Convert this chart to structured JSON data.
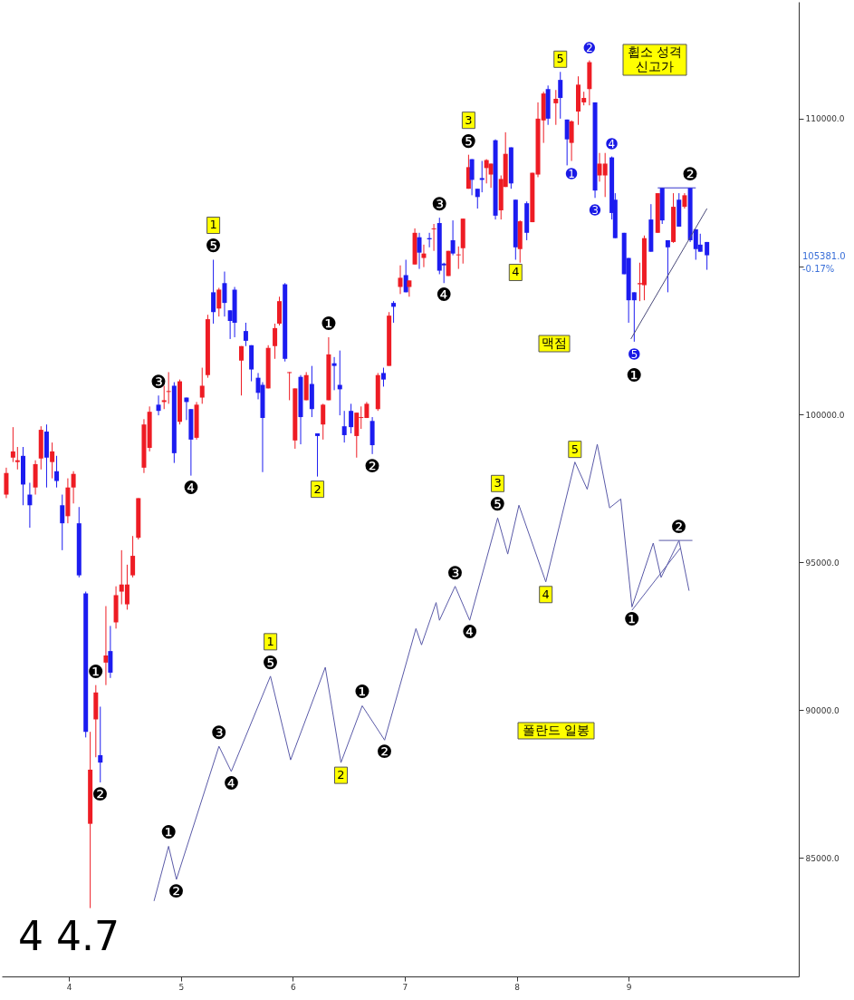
{
  "chart_data": {
    "type": "candlestick",
    "x": [
      3.44,
      3.5,
      3.54,
      3.59,
      3.65,
      3.7,
      3.75,
      3.8,
      3.85,
      3.89,
      3.94,
      3.99,
      4.04,
      4.09,
      4.15,
      4.19,
      4.24,
      4.28,
      4.33,
      4.37,
      4.42,
      4.47,
      4.52,
      4.57,
      4.62,
      4.67,
      4.72,
      4.8,
      4.85,
      4.89,
      4.94,
      4.99,
      5.05,
      5.09,
      5.14,
      5.19,
      5.24,
      5.29,
      5.34,
      5.39,
      5.44,
      5.48,
      5.54,
      5.58,
      5.63,
      5.69,
      5.73,
      5.78,
      5.84,
      5.88,
      5.93,
      5.97,
      6.02,
      6.07,
      6.12,
      6.17,
      6.22,
      6.27,
      6.32,
      6.37,
      6.42,
      6.46,
      6.52,
      6.57,
      6.61,
      6.66,
      6.71,
      6.76,
      6.81,
      6.86,
      6.9,
      6.96,
      7.01,
      7.04,
      7.09,
      7.13,
      7.17,
      7.22,
      7.26,
      7.31,
      7.35,
      7.39,
      7.43,
      7.48,
      7.52,
      7.57,
      7.6,
      7.65,
      7.69,
      7.73,
      7.77,
      7.81,
      7.86,
      7.9,
      7.95,
      7.99,
      8.03,
      8.09,
      8.14,
      8.19,
      8.24,
      8.28,
      8.35,
      8.39,
      8.45,
      8.49,
      8.55,
      8.6,
      8.65,
      8.7,
      8.74,
      8.79,
      8.85,
      8.88,
      8.96,
      9.0,
      9.05,
      9.1,
      9.14,
      9.2,
      9.26,
      9.3,
      9.35,
      9.4,
      9.45,
      9.5,
      9.55,
      9.6,
      9.64,
      9.7
    ],
    "ohlc": [
      [
        97290,
        98200,
        97170,
        98020
      ],
      [
        98540,
        99570,
        98390,
        98750
      ],
      [
        98390,
        98900,
        98140,
        98450
      ],
      [
        98600,
        98900,
        96930,
        97630
      ],
      [
        97290,
        97690,
        96170,
        96930
      ],
      [
        97530,
        98450,
        97290,
        98320
      ],
      [
        98510,
        99600,
        98140,
        99480
      ],
      [
        99420,
        99660,
        97530,
        98540
      ],
      [
        98390,
        99050,
        97840,
        98750
      ],
      [
        98080,
        98600,
        97530,
        97750
      ],
      [
        96930,
        97290,
        95410,
        96320
      ],
      [
        96560,
        97840,
        96320,
        97530
      ],
      [
        97530,
        98080,
        96990,
        97990
      ],
      [
        96320,
        96870,
        94490,
        94560
      ],
      [
        93950,
        94010,
        89080,
        89270
      ],
      [
        86160,
        89270,
        83310,
        87990
      ],
      [
        89690,
        90850,
        88410,
        90600
      ],
      [
        88480,
        90120,
        87560,
        88230
      ],
      [
        91610,
        93520,
        90850,
        91850
      ],
      [
        92000,
        92850,
        91090,
        91270
      ],
      [
        92970,
        94190,
        92760,
        93890
      ],
      [
        94010,
        95410,
        93580,
        94250
      ],
      [
        93580,
        94920,
        93400,
        94250
      ],
      [
        94560,
        95890,
        94490,
        95220
      ],
      [
        95830,
        97170,
        95770,
        97170
      ],
      [
        98200,
        99840,
        98020,
        99660
      ],
      [
        98870,
        100270,
        98750,
        100090
      ],
      [
        100330,
        100640,
        99970,
        100120
      ],
      [
        100420,
        100970,
        100180,
        100480
      ],
      [
        100760,
        101430,
        100360,
        100790
      ],
      [
        100970,
        101090,
        98360,
        98690
      ],
      [
        99750,
        101180,
        99660,
        101120
      ],
      [
        100570,
        100570,
        99810,
        100420
      ],
      [
        100180,
        100180,
        97930,
        99150
      ],
      [
        99210,
        100420,
        99150,
        100330
      ],
      [
        100570,
        101580,
        100360,
        100970
      ],
      [
        101330,
        103370,
        101240,
        103220
      ],
      [
        104130,
        105230,
        103070,
        103460
      ],
      [
        103580,
        104280,
        103310,
        104220
      ],
      [
        104440,
        104830,
        103310,
        103770
      ],
      [
        103520,
        103520,
        102550,
        103160
      ],
      [
        104220,
        104310,
        102610,
        103100
      ],
      [
        101820,
        102310,
        100640,
        102310
      ],
      [
        102820,
        103100,
        102310,
        102490
      ],
      [
        102340,
        102340,
        101120,
        101520
      ],
      [
        101240,
        101400,
        100510,
        100730
      ],
      [
        101000,
        101090,
        98050,
        99880
      ],
      [
        100880,
        102340,
        100880,
        102250
      ],
      [
        102310,
        103070,
        101880,
        102920
      ],
      [
        103070,
        103980,
        103010,
        103830
      ],
      [
        104400,
        104440,
        101790,
        101880
      ],
      [
        101400,
        101430,
        100480,
        101430
      ],
      [
        99120,
        100880,
        98840,
        100880
      ],
      [
        101270,
        101330,
        98990,
        99910
      ],
      [
        100480,
        101430,
        100480,
        101330
      ],
      [
        101030,
        101640,
        99910,
        100180
      ],
      [
        99360,
        99360,
        97900,
        99270
      ],
      [
        99660,
        100360,
        99150,
        100330
      ],
      [
        100480,
        102610,
        100480,
        102030
      ],
      [
        101730,
        101940,
        100820,
        101640
      ],
      [
        101000,
        102160,
        99970,
        100850
      ],
      [
        99600,
        100120,
        99050,
        99300
      ],
      [
        100120,
        100360,
        99360,
        99570
      ],
      [
        99270,
        100060,
        98540,
        100060
      ],
      [
        99880,
        100270,
        99510,
        99910
      ],
      [
        99880,
        100420,
        99880,
        100360
      ],
      [
        99780,
        99910,
        98660,
        98960
      ],
      [
        100180,
        101400,
        100120,
        101330
      ],
      [
        101400,
        101580,
        100940,
        101180
      ],
      [
        101640,
        103460,
        101640,
        103340
      ],
      [
        103770,
        103830,
        103100,
        103640
      ],
      [
        104310,
        105040,
        104070,
        104620
      ],
      [
        104710,
        105230,
        104130,
        104130
      ],
      [
        104310,
        104530,
        103980,
        104530
      ],
      [
        105070,
        106290,
        105070,
        106140
      ],
      [
        105990,
        106140,
        104920,
        105470
      ],
      [
        105290,
        105740,
        104980,
        105440
      ],
      [
        105960,
        106140,
        105650,
        105920
      ],
      [
        106260,
        106440,
        105530,
        106290
      ],
      [
        106470,
        106650,
        104740,
        104860
      ],
      [
        105100,
        105130,
        104440,
        105040
      ],
      [
        104680,
        105530,
        104680,
        105530
      ],
      [
        105890,
        106560,
        105380,
        105440
      ],
      [
        105380,
        105680,
        104920,
        105410
      ],
      [
        105620,
        106620,
        105100,
        106620
      ],
      [
        107630,
        108780,
        107630,
        108360
      ],
      [
        108630,
        108630,
        107410,
        107930
      ],
      [
        107630,
        107630,
        106960,
        107350
      ],
      [
        107990,
        108570,
        107510,
        107930
      ],
      [
        108330,
        108630,
        107810,
        108600
      ],
      [
        108110,
        108480,
        107660,
        108480
      ],
      [
        109270,
        109300,
        106590,
        106720
      ],
      [
        106900,
        108080,
        106590,
        107960
      ],
      [
        107690,
        109540,
        107690,
        108810
      ],
      [
        109030,
        109030,
        107630,
        107810
      ],
      [
        107260,
        107260,
        105230,
        105650
      ],
      [
        105590,
        106560,
        105130,
        106530
      ],
      [
        107140,
        107200,
        105890,
        106140
      ],
      [
        106500,
        108170,
        106500,
        108170
      ],
      [
        108110,
        110550,
        108020,
        110000
      ],
      [
        109940,
        110910,
        109180,
        110850
      ],
      [
        111000,
        111120,
        109790,
        110000
      ],
      [
        110520,
        110970,
        109790,
        110670
      ],
      [
        111310,
        111580,
        110000,
        110700
      ],
      [
        109970,
        109970,
        108420,
        109300
      ],
      [
        109180,
        109940,
        108570,
        109910
      ],
      [
        110240,
        111430,
        109790,
        111150
      ],
      [
        110550,
        110910,
        110450,
        110700
      ],
      [
        111000,
        111970,
        110450,
        111910
      ],
      [
        110550,
        110550,
        107320,
        107570
      ],
      [
        108080,
        108840,
        107870,
        108480
      ],
      [
        108080,
        108840,
        107350,
        108480
      ],
      [
        108690,
        108720,
        106590,
        106810
      ],
      [
        107260,
        107480,
        105960,
        105960
      ],
      [
        106140,
        106140,
        104740,
        104740
      ],
      [
        105290,
        105290,
        103100,
        103860
      ],
      [
        104130,
        104130,
        102460,
        103860
      ],
      [
        104400,
        105130,
        103830,
        104440
      ],
      [
        104370,
        106050,
        103860,
        105960
      ],
      [
        106590,
        107110,
        105500,
        105500
      ],
      [
        106140,
        107480,
        106140,
        107480
      ],
      [
        107660,
        107660,
        106440,
        106560
      ],
      [
        105890,
        105890,
        104130,
        105650
      ],
      [
        105830,
        107480,
        105800,
        107020
      ],
      [
        107260,
        107480,
        106350,
        106350
      ],
      [
        107020,
        107480,
        106960,
        107410
      ],
      [
        107660,
        107660,
        105830,
        105890
      ],
      [
        106260,
        106260,
        105230,
        105590
      ],
      [
        105740,
        106110,
        105500,
        105500
      ],
      [
        105830,
        105830,
        104890,
        105381
      ]
    ],
    "colors": [
      "#ee1c24",
      "#ee1c24",
      "#ee1c24",
      "#1c1cf0",
      "#1c1cf0",
      "#ee1c24",
      "#ee1c24",
      "#1c1cf0",
      "#ee1c24",
      "#1c1cf0",
      "#1c1cf0",
      "#ee1c24",
      "#ee1c24",
      "#1c1cf0",
      "#1c1cf0",
      "#ee1c24",
      "#ee1c24",
      "#1c1cf0",
      "#ee1c24",
      "#1c1cf0",
      "#ee1c24",
      "#ee1c24",
      "#ee1c24",
      "#ee1c24",
      "#ee1c24",
      "#ee1c24",
      "#ee1c24",
      "#1c1cf0",
      "#ee1c24",
      "#ee1c24",
      "#1c1cf0",
      "#ee1c24",
      "#1c1cf0",
      "#1c1cf0",
      "#ee1c24",
      "#ee1c24",
      "#ee1c24",
      "#1c1cf0",
      "#ee1c24",
      "#1c1cf0",
      "#1c1cf0",
      "#1c1cf0",
      "#ee1c24",
      "#1c1cf0",
      "#1c1cf0",
      "#1c1cf0",
      "#1c1cf0",
      "#ee1c24",
      "#ee1c24",
      "#ee1c24",
      "#1c1cf0",
      "#ee1c24",
      "#ee1c24",
      "#1c1cf0",
      "#ee1c24",
      "#1c1cf0",
      "#1c1cf0",
      "#ee1c24",
      "#ee1c24",
      "#1c1cf0",
      "#1c1cf0",
      "#1c1cf0",
      "#1c1cf0",
      "#ee1c24",
      "#ee1c24",
      "#ee1c24",
      "#1c1cf0",
      "#ee1c24",
      "#1c1cf0",
      "#ee1c24",
      "#1c1cf0",
      "#ee1c24",
      "#1c1cf0",
      "#ee1c24",
      "#ee1c24",
      "#1c1cf0",
      "#ee1c24",
      "#1c1cf0",
      "#ee1c24",
      "#1c1cf0",
      "#1c1cf0",
      "#ee1c24",
      "#1c1cf0",
      "#ee1c24",
      "#ee1c24",
      "#ee1c24",
      "#1c1cf0",
      "#1c1cf0",
      "#1c1cf0",
      "#ee1c24",
      "#ee1c24",
      "#1c1cf0",
      "#ee1c24",
      "#ee1c24",
      "#1c1cf0",
      "#1c1cf0",
      "#ee1c24",
      "#1c1cf0",
      "#ee1c24",
      "#ee1c24",
      "#ee1c24",
      "#1c1cf0",
      "#ee1c24",
      "#1c1cf0",
      "#1c1cf0",
      "#ee1c24",
      "#ee1c24",
      "#ee1c24",
      "#ee1c24",
      "#1c1cf0",
      "#ee1c24",
      "#ee1c24",
      "#1c1cf0",
      "#1c1cf0",
      "#1c1cf0",
      "#1c1cf0",
      "#1c1cf0",
      "#ee1c24",
      "#ee1c24",
      "#1c1cf0",
      "#ee1c24",
      "#1c1cf0",
      "#1c1cf0",
      "#ee1c24",
      "#1c1cf0",
      "#ee1c24",
      "#1c1cf0",
      "#1c1cf0",
      "#1c1cf0",
      "#1c1cf0"
    ],
    "series": [
      {
        "type": "line",
        "color": "#5a5aa8",
        "x": [
          4.76,
          4.89,
          4.96,
          5.34,
          5.45,
          5.8,
          5.98,
          6.29,
          6.43,
          6.62,
          6.82,
          7.1,
          7.15,
          7.28,
          7.31,
          7.45,
          7.58,
          7.83,
          7.92,
          8.02,
          8.26,
          8.52,
          8.63,
          8.72,
          8.83,
          8.93,
          9.03,
          9.22,
          9.29,
          9.45,
          9.54
        ],
        "values": [
          83550,
          85400,
          84280,
          88780,
          87930,
          91150,
          88320,
          91450,
          88230,
          90150,
          88990,
          92760,
          92210,
          93640,
          93040,
          94190,
          93040,
          96500,
          95280,
          96930,
          94340,
          98390,
          97470,
          98990,
          96840,
          97140,
          93490,
          95650,
          94490,
          95740,
          94040
        ]
      },
      {
        "type": "line",
        "color": "#5a5aa8",
        "x": [
          9.03,
          9.46
        ],
        "values": [
          93380,
          95470
        ]
      },
      {
        "type": "line",
        "color": "#5a5aa8",
        "x": [
          9.27,
          9.57
        ],
        "values": [
          95740,
          95740
        ]
      },
      {
        "type": "line",
        "color": "#4a4a7a",
        "x": [
          9.02,
          9.7
        ],
        "values": [
          102550,
          106960
        ]
      },
      {
        "type": "line",
        "color": "#3333cc",
        "x": [
          9.26,
          9.6
        ],
        "values": [
          107660,
          107660
        ]
      }
    ],
    "xlim": [
      3.4,
      10.52
    ],
    "xticks": [
      4,
      5,
      6,
      7,
      8,
      9
    ],
    "ylim": [
      81000,
      113950
    ],
    "yticks": [
      {
        "value": 85000,
        "label": "85000.0"
      },
      {
        "value": 90000,
        "label": "90000.0"
      },
      {
        "value": 95000,
        "label": "95000.0"
      },
      {
        "value": 100000,
        "label": "100000.0"
      },
      {
        "value": 105000,
        "label": null
      },
      {
        "value": 110000,
        "label": "110000.0"
      }
    ],
    "grid": false,
    "annotations": [
      {
        "text": "❸",
        "x": 4.8,
        "y": 100640
      },
      {
        "text": "❹",
        "x": 5.09,
        "y": 97930
      },
      {
        "text": "❺",
        "x": 5.29,
        "y": 105230
      },
      {
        "text": "1",
        "x": 5.29,
        "y": 105230
      },
      {
        "text": "❶",
        "x": 6.32,
        "y": 102610
      },
      {
        "text": "❷",
        "x": 6.71,
        "y": 98660
      },
      {
        "text": "2",
        "x": 6.22,
        "y": 97900
      },
      {
        "text": "❸",
        "x": 7.31,
        "y": 106650
      },
      {
        "text": "❹",
        "x": 7.35,
        "y": 104440
      },
      {
        "text": "❺",
        "x": 7.57,
        "y": 108780
      },
      {
        "text": "3",
        "x": 7.57,
        "y": 108780
      },
      {
        "text": "4",
        "x": 7.99,
        "y": 105230
      },
      {
        "text": "5",
        "x": 8.39,
        "y": 111580
      },
      {
        "text": "➋",
        "x": 8.65,
        "y": 111970
      },
      {
        "text": "➊",
        "x": 8.49,
        "y": 108570
      },
      {
        "text": "➌",
        "x": 8.7,
        "y": 107320
      },
      {
        "text": "➍",
        "x": 8.85,
        "y": 108720
      },
      {
        "text": "➎",
        "x": 9.05,
        "y": 102460
      },
      {
        "text": "❶",
        "x": 9.05,
        "y": 102460
      },
      {
        "text": "❷",
        "x": 9.55,
        "y": 107660
      },
      {
        "text": "❶",
        "x": 4.24,
        "y": 90850
      },
      {
        "text": "❷",
        "x": 4.28,
        "y": 87560
      },
      {
        "text": "❶",
        "x": 4.89,
        "y": 85400
      },
      {
        "text": "❷",
        "x": 4.96,
        "y": 84280
      },
      {
        "text": "❸",
        "x": 5.34,
        "y": 88780
      },
      {
        "text": "❹",
        "x": 5.45,
        "y": 87930
      },
      {
        "text": "❺",
        "x": 5.8,
        "y": 91150
      },
      {
        "text": "1",
        "x": 5.8,
        "y": 91150
      },
      {
        "text": "2",
        "x": 6.43,
        "y": 88230
      },
      {
        "text": "❶",
        "x": 6.62,
        "y": 90150
      },
      {
        "text": "❷",
        "x": 6.82,
        "y": 88990
      },
      {
        "text": "❸",
        "x": 7.45,
        "y": 94190
      },
      {
        "text": "❹",
        "x": 7.58,
        "y": 93040
      },
      {
        "text": "❺",
        "x": 7.83,
        "y": 96500
      },
      {
        "text": "3",
        "x": 7.83,
        "y": 96500
      },
      {
        "text": "4",
        "x": 8.26,
        "y": 94340
      },
      {
        "text": "5",
        "x": 8.52,
        "y": 98390
      },
      {
        "text": "❶",
        "x": 9.03,
        "y": 93490
      },
      {
        "text": "❷",
        "x": 9.45,
        "y": 95740
      },
      "휩소 성격\n신고가",
      "맥점",
      "폴란드 일봉",
      "105381.0",
      "-0.17%",
      "4 4.7"
    ]
  }
}
